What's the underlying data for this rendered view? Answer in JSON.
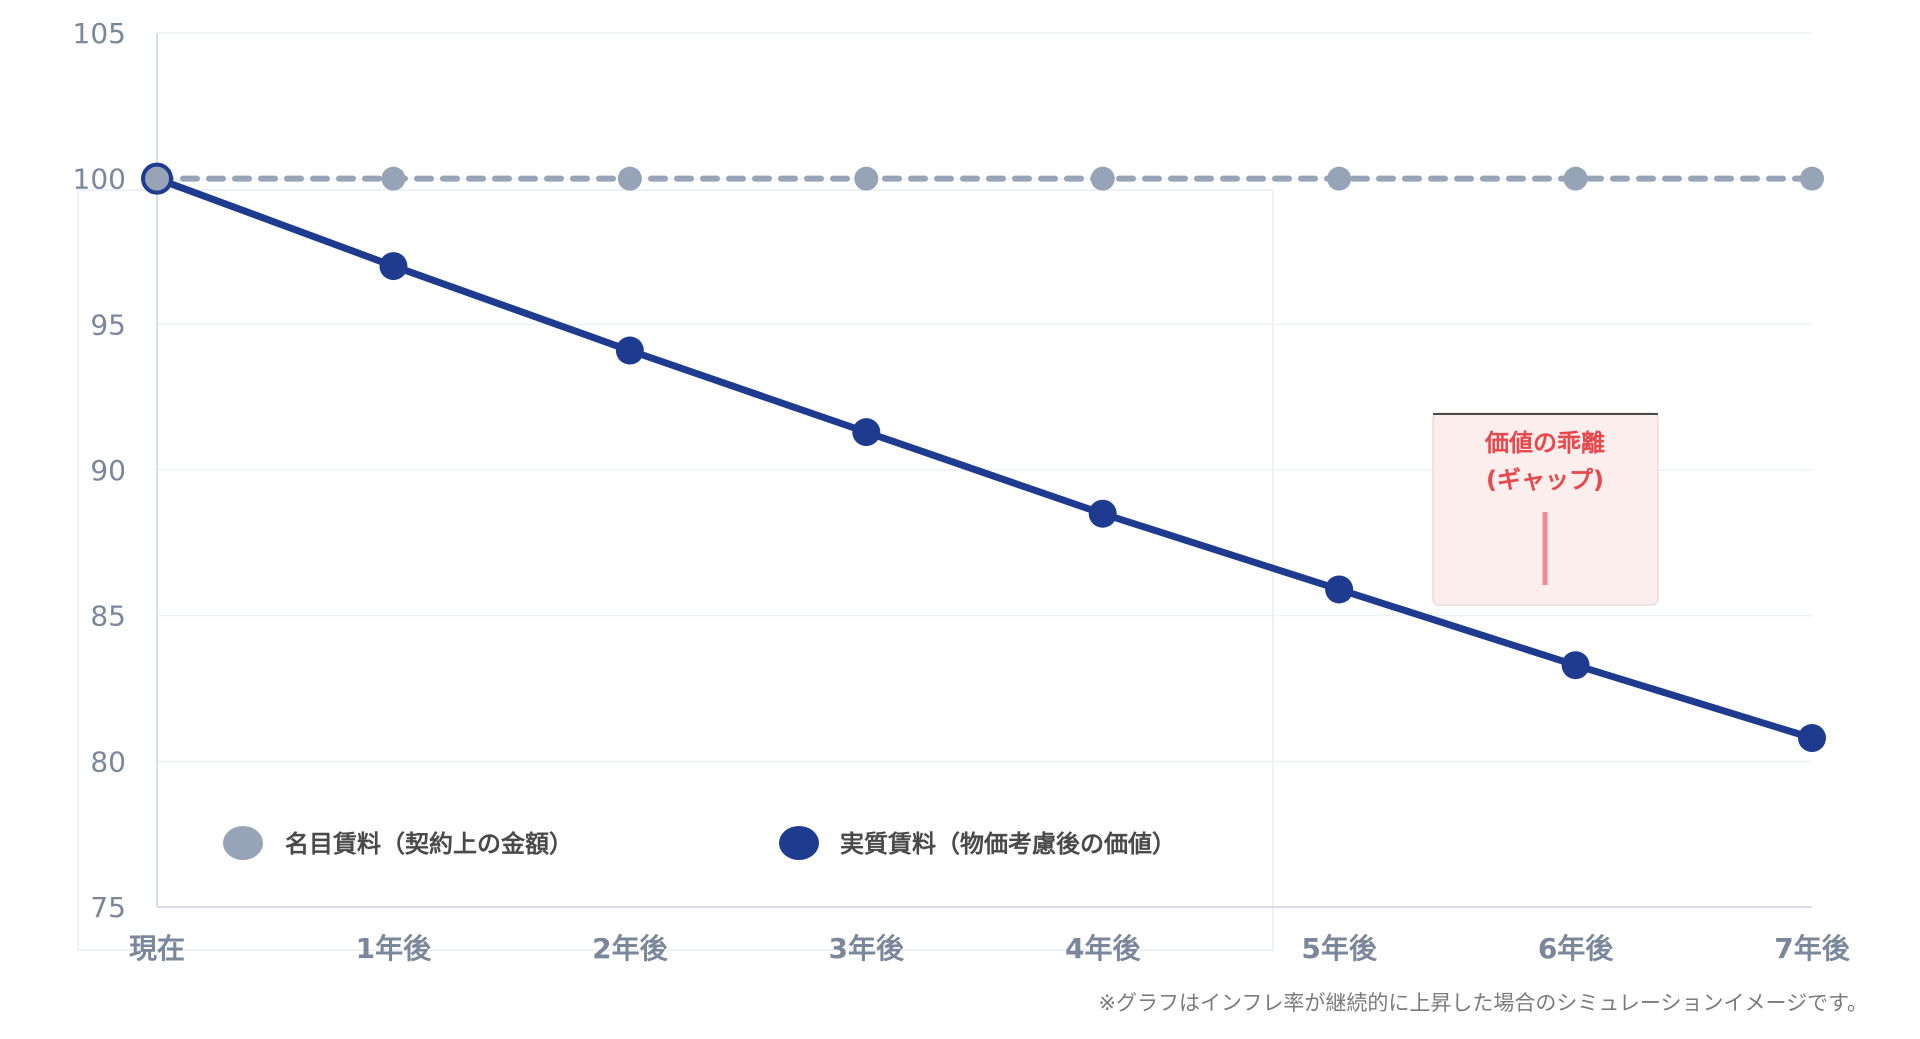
{
  "chart_data": {
    "type": "line",
    "categories": [
      "現在",
      "1年後",
      "2年後",
      "3年後",
      "4年後",
      "5年後",
      "6年後",
      "7年後"
    ],
    "series": [
      {
        "name": "名目賃料（契約上の金額）",
        "values": [
          100,
          100,
          100,
          100,
          100,
          100,
          100,
          100
        ],
        "color": "#97a3b6",
        "style": "dashed"
      },
      {
        "name": "実質賃料（物価考慮後の価値）",
        "values": [
          100,
          97,
          94.1,
          91.3,
          88.5,
          85.9,
          83.3,
          80.8
        ],
        "color": "#1f3b8f",
        "style": "solid"
      }
    ],
    "ylim": [
      75,
      105
    ],
    "yticks": [
      75,
      80,
      85,
      90,
      95,
      100,
      105
    ],
    "grid": true,
    "legend_position": "bottom-left",
    "annotation": {
      "lines": [
        "価値の乖離",
        "(ギャップ)"
      ],
      "color": "#e8474c",
      "background": "#fdeeee"
    },
    "footnote": "※グラフはインフレ率が継続的に上昇した場合のシミュレーションイメージです。"
  }
}
